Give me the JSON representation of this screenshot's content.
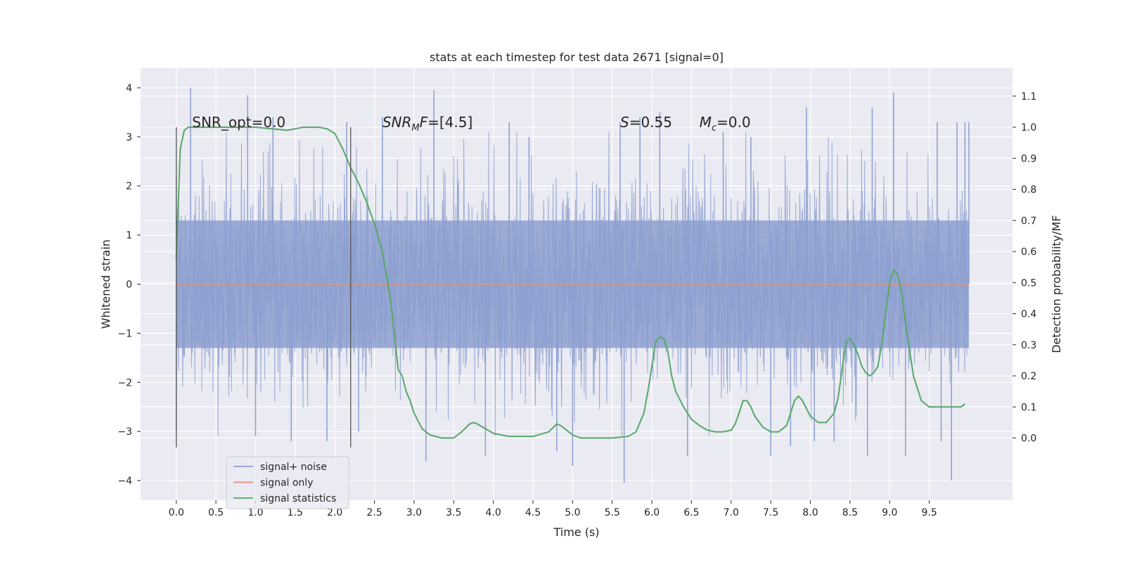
{
  "chart_data": {
    "type": "line",
    "title": "stats at each timestep for test data 2671 [signal=0]",
    "xlabel": "Time (s)",
    "ylabel": "Whitened strain",
    "y2label": "Detection probability/MF",
    "xlim": [
      -0.45,
      10.55
    ],
    "ylim": [
      -4.4,
      4.4
    ],
    "y2lim": [
      -0.2,
      1.19
    ],
    "x_ticks": [
      0.0,
      0.5,
      1.0,
      1.5,
      2.0,
      2.5,
      3.0,
      3.5,
      4.0,
      4.5,
      5.0,
      5.5,
      6.0,
      6.5,
      7.0,
      7.5,
      8.0,
      8.5,
      9.0,
      9.5
    ],
    "x_tick_labels": [
      "0.0",
      "0.5",
      "1.0",
      "1.5",
      "2.0",
      "2.5",
      "3.0",
      "3.5",
      "4.0",
      "4.5",
      "5.0",
      "5.5",
      "6.0",
      "6.5",
      "7.0",
      "7.5",
      "8.0",
      "8.5",
      "9.0",
      "9.5"
    ],
    "y_ticks": [
      -4,
      -3,
      -2,
      -1,
      0,
      1,
      2,
      3,
      4
    ],
    "y_tick_labels": [
      "−4",
      "−3",
      "−2",
      "−1",
      "0",
      "1",
      "2",
      "3",
      "4"
    ],
    "y2_ticks": [
      0.0,
      0.1,
      0.2,
      0.3,
      0.4,
      0.5,
      0.6,
      0.7,
      0.8,
      0.9,
      1.0,
      1.1
    ],
    "y2_tick_labels": [
      "0.0",
      "0.1",
      "0.2",
      "0.3",
      "0.4",
      "0.5",
      "0.6",
      "0.7",
      "0.8",
      "0.9",
      "1.0",
      "1.1"
    ],
    "grid": true,
    "legend_position": "lower-left",
    "noise": {
      "x_range": [
        0.0,
        10.0
      ],
      "typical_amplitude": 1.3,
      "spikes": [
        [
          0.18,
          4.0
        ],
        [
          0.9,
          3.85
        ],
        [
          1.22,
          3.4
        ],
        [
          2.15,
          3.3
        ],
        [
          2.3,
          -3.0
        ],
        [
          3.15,
          -3.6
        ],
        [
          3.25,
          3.95
        ],
        [
          3.9,
          -3.5
        ],
        [
          4.8,
          -3.4
        ],
        [
          5.0,
          -3.7
        ],
        [
          5.6,
          3.3
        ],
        [
          5.65,
          -4.05
        ],
        [
          5.85,
          3.4
        ],
        [
          6.1,
          3.5
        ],
        [
          6.45,
          -3.5
        ],
        [
          7.5,
          -3.5
        ],
        [
          7.75,
          -3.3
        ],
        [
          7.95,
          3.6
        ],
        [
          8.3,
          -3.2
        ],
        [
          8.72,
          -3.5
        ],
        [
          8.78,
          3.6
        ],
        [
          9.05,
          3.9
        ],
        [
          9.2,
          -3.5
        ],
        [
          9.6,
          3.3
        ],
        [
          9.65,
          -3.2
        ],
        [
          9.78,
          -4.0
        ],
        [
          9.85,
          3.3
        ],
        [
          9.95,
          3.3
        ],
        [
          10.0,
          3.3
        ],
        [
          0.0,
          -3.0
        ],
        [
          0.0,
          2.2
        ],
        [
          1.45,
          -3.2
        ],
        [
          1.9,
          -3.2
        ],
        [
          2.6,
          3.4
        ],
        [
          4.2,
          3.3
        ],
        [
          6.9,
          3.1
        ],
        [
          7.25,
          3.0
        ],
        [
          8.05,
          -3.2
        ],
        [
          4.45,
          3.0
        ],
        [
          1.0,
          -3.1
        ]
      ]
    },
    "series": [
      {
        "name": "signal+ noise",
        "color": "#8c9fcf",
        "axis": "left",
        "note_values": "dense noise; see noise"
      },
      {
        "name": "signal only",
        "color": "#e6927a",
        "axis": "left",
        "x": [
          0.0,
          10.0
        ],
        "y": [
          0.0,
          0.0
        ]
      },
      {
        "name": "signal statistics",
        "color": "#55a868",
        "axis": "right",
        "x": [
          0.0,
          0.05,
          0.1,
          0.15,
          0.2,
          0.3,
          0.5,
          0.8,
          1.0,
          1.2,
          1.4,
          1.5,
          1.6,
          1.8,
          1.9,
          2.0,
          2.1,
          2.2,
          2.3,
          2.4,
          2.5,
          2.6,
          2.7,
          2.8,
          2.85,
          2.9,
          2.95,
          3.0,
          3.1,
          3.2,
          3.35,
          3.5,
          3.6,
          3.7,
          3.75,
          3.8,
          3.9,
          4.0,
          4.2,
          4.5,
          4.7,
          4.8,
          4.85,
          4.9,
          5.0,
          5.1,
          5.3,
          5.5,
          5.7,
          5.8,
          5.9,
          5.95,
          6.0,
          6.05,
          6.1,
          6.15,
          6.2,
          6.25,
          6.3,
          6.4,
          6.5,
          6.6,
          6.7,
          6.8,
          6.9,
          7.0,
          7.05,
          7.1,
          7.15,
          7.2,
          7.25,
          7.3,
          7.4,
          7.5,
          7.6,
          7.7,
          7.75,
          7.8,
          7.85,
          7.9,
          8.0,
          8.1,
          8.2,
          8.3,
          8.35,
          8.4,
          8.45,
          8.5,
          8.55,
          8.6,
          8.65,
          8.7,
          8.75,
          8.8,
          8.85,
          8.9,
          8.95,
          9.0,
          9.05,
          9.1,
          9.15,
          9.2,
          9.3,
          9.4,
          9.5,
          9.6,
          9.7,
          9.8,
          9.9,
          9.95
        ],
        "y": [
          0.58,
          0.93,
          0.99,
          1.0,
          1.0,
          1.0,
          1.0,
          1.0,
          1.0,
          0.995,
          0.99,
          0.995,
          1.0,
          1.0,
          0.995,
          0.98,
          0.93,
          0.87,
          0.82,
          0.76,
          0.69,
          0.6,
          0.45,
          0.22,
          0.2,
          0.15,
          0.12,
          0.08,
          0.03,
          0.01,
          0.0,
          0.0,
          0.02,
          0.045,
          0.05,
          0.045,
          0.03,
          0.015,
          0.005,
          0.005,
          0.02,
          0.045,
          0.04,
          0.03,
          0.01,
          0.0,
          0.0,
          0.0,
          0.005,
          0.02,
          0.08,
          0.15,
          0.23,
          0.31,
          0.325,
          0.32,
          0.28,
          0.2,
          0.15,
          0.1,
          0.06,
          0.04,
          0.025,
          0.02,
          0.02,
          0.025,
          0.045,
          0.08,
          0.12,
          0.12,
          0.1,
          0.07,
          0.035,
          0.02,
          0.02,
          0.04,
          0.08,
          0.12,
          0.135,
          0.12,
          0.07,
          0.05,
          0.05,
          0.08,
          0.13,
          0.22,
          0.31,
          0.32,
          0.3,
          0.27,
          0.23,
          0.21,
          0.2,
          0.21,
          0.23,
          0.3,
          0.4,
          0.5,
          0.54,
          0.525,
          0.47,
          0.37,
          0.2,
          0.12,
          0.1,
          0.1,
          0.1,
          0.1,
          0.1,
          0.11
        ]
      }
    ],
    "vlines": [
      0.0,
      2.2
    ],
    "annotations": [
      {
        "id": "snr-opt",
        "x": 0.2,
        "text": "SNR_opt=0.0"
      },
      {
        "id": "snr-mf",
        "x": 2.6,
        "text": "SNRMF=[4.5]",
        "math": true,
        "prefix": "SNR",
        "sub": "M",
        "rest": "F=[4.5]"
      },
      {
        "id": "s-val",
        "x": 5.6,
        "text": "S=0.55",
        "math": true,
        "prefix": "S",
        "rest": "=0.55"
      },
      {
        "id": "mc-val",
        "x": 6.6,
        "text": "Mc=0.0",
        "math": true,
        "prefix": "M",
        "sub": "c",
        "rest": "=0.0"
      }
    ],
    "annotation_y": 3.2
  }
}
